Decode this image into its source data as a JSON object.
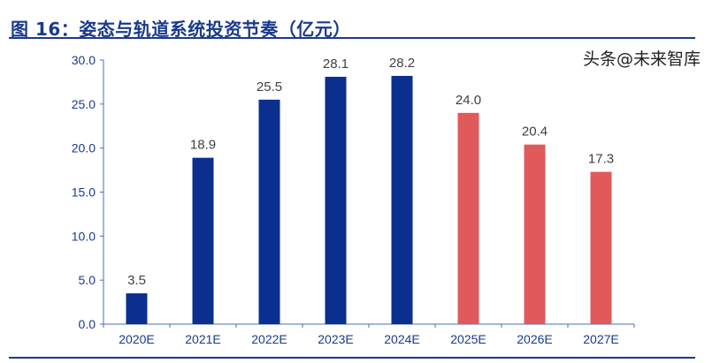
{
  "title": "图 16：姿态与轨道系统投资节奏（亿元）",
  "watermark": "头条@未来智库",
  "chart_data": {
    "type": "bar",
    "title": "图 16：姿态与轨道系统投资节奏（亿元）",
    "categories": [
      "2020E",
      "2021E",
      "2022E",
      "2023E",
      "2024E",
      "2025E",
      "2026E",
      "2027E"
    ],
    "values": [
      3.5,
      18.9,
      25.5,
      28.1,
      28.2,
      24.0,
      20.4,
      17.3
    ],
    "colors": [
      "#0a2f8f",
      "#0a2f8f",
      "#0a2f8f",
      "#0a2f8f",
      "#0a2f8f",
      "#e05a5c",
      "#e05a5c",
      "#e05a5c"
    ],
    "ylim": [
      0,
      30
    ],
    "yticks": [
      "0.0",
      "5.0",
      "10.0",
      "15.0",
      "20.0",
      "25.0",
      "30.0"
    ],
    "xlabel": "",
    "ylabel": "",
    "grid": false,
    "legend": "none"
  }
}
